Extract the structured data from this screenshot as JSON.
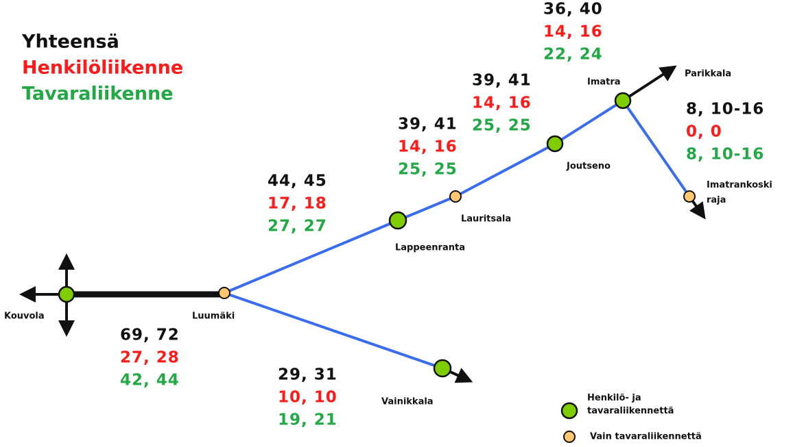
{
  "legend": {
    "total": "Yhteensä",
    "passenger": "Henkilöliikenne",
    "freight": "Tavaraliikenne"
  },
  "stations": [
    {
      "label": "Kouvola"
    },
    {
      "label": "Luumäki"
    },
    {
      "label": "Lappeenranta"
    },
    {
      "label": "Lauritsala"
    },
    {
      "label": "Joutseno"
    },
    {
      "label": "Imatra"
    },
    {
      "label": "Parikkala"
    },
    {
      "label": "Imatrankoski raja"
    },
    {
      "label": "Vainikkala"
    }
  ],
  "segments": [
    {
      "total": "69, 72",
      "passenger": "27, 28",
      "freight": "42, 44"
    },
    {
      "total": "29, 31",
      "passenger": "10, 10",
      "freight": "19, 21"
    },
    {
      "total": "44, 45",
      "passenger": "17, 18",
      "freight": "27, 27"
    },
    {
      "total": "39, 41",
      "passenger": "14, 16",
      "freight": "25, 25"
    },
    {
      "total": "39, 41",
      "passenger": "14, 16",
      "freight": "25, 25"
    },
    {
      "total": "36, 40",
      "passenger": "14, 16",
      "freight": "22, 24"
    },
    {
      "total": "8, 10-16",
      "passenger": "0, 0",
      "freight": "8, 10-16"
    }
  ],
  "marker_legend": {
    "both": "Henkilö- ja tavaraliikennettä",
    "freight_only": "Vain tavaraliikennettä"
  }
}
